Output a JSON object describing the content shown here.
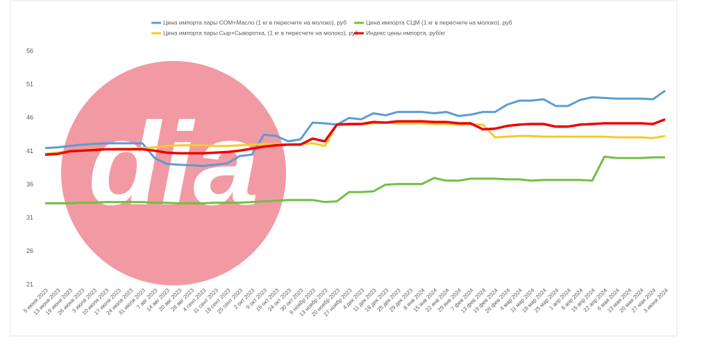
{
  "chart_data": {
    "type": "line",
    "watermark": "dia",
    "categories": [
      "5 июня 2023",
      "13 июня 2023",
      "19 июня 2023",
      "26 июня 2023",
      "3 июля 2023",
      "10 июля 2023",
      "17 июля 2023",
      "24 июля 2023",
      "31 июля 2023",
      "7 авг 2023",
      "14 авг 2023",
      "20 авг 2023",
      "28 авг 2023",
      "4 сент 2023",
      "11 сент 2023",
      "18 сент 2023",
      "25 сент 2023",
      "2 окт 2023",
      "9 окт 2023",
      "16 окт 2023",
      "24 окт 2023",
      "30 окт 2023",
      "6 ноябр 2023",
      "13 ноябр 2023",
      "20 ноябр 2023",
      "27 ноябр 2023",
      "4 дек 2023",
      "11 дек 2023",
      "18 дек 2023",
      "25 дек 2023",
      "29 дек 2023",
      "8 янв 2024",
      "15 янв 2024",
      "22 янв 2024",
      "29 янв 2024",
      "7 фев 2024",
      "13 фев 2024",
      "19 фев 2024",
      "26 фев 2024",
      "4 мар 2024",
      "11 мар 2024",
      "18 мар 2024",
      "25 мар 2024",
      "1 апр 2024",
      "8 апр 2024",
      "15 апр 2024",
      "22 апр 2024",
      "6 мая 2024",
      "13 мая 2024",
      "20 мая 2024",
      "27 мая 2024",
      "3 июня 2024"
    ],
    "series": [
      {
        "name": "Цена импорта пары СОМ+Масло (1 кг в пересчете на молоко), руб",
        "color": "#5b9bd5",
        "values": [
          41.5,
          41.6,
          41.8,
          42,
          42.1,
          42.2,
          42.2,
          42.2,
          42.2,
          40,
          39.1,
          39,
          38.9,
          38.8,
          39,
          39.2,
          40.3,
          40.5,
          43.5,
          43.3,
          42.5,
          42.8,
          45.3,
          45.2,
          45,
          46,
          45.8,
          46.7,
          46.4,
          46.9,
          46.9,
          46.9,
          46.7,
          46.9,
          46.3,
          46.5,
          46.9,
          46.9,
          48,
          48.6,
          48.6,
          48.8,
          47.8,
          47.8,
          48.7,
          49.1,
          49,
          48.9,
          48.9,
          48.9,
          48.8,
          50.1
        ]
      },
      {
        "name": "Цена импорта СЦМ (1 кг в пересчете на молоко), руб",
        "color": "#70c040",
        "values": [
          33.2,
          33.2,
          33.2,
          33.3,
          33.3,
          33.4,
          33.4,
          33.4,
          33.4,
          33.3,
          33.3,
          33.2,
          33.2,
          33.2,
          33.3,
          33.3,
          33.3,
          33.4,
          33.5,
          33.6,
          33.7,
          33.7,
          33.7,
          33.4,
          33.5,
          34.9,
          34.9,
          35,
          36,
          36.1,
          36.1,
          36.1,
          37,
          36.6,
          36.6,
          36.9,
          36.9,
          36.9,
          36.8,
          36.8,
          36.6,
          36.7,
          36.7,
          36.7,
          36.7,
          36.6,
          40.2,
          40,
          40,
          40,
          40.1,
          40.1
        ]
      },
      {
        "name": "Цена импорта пары Сыр+Сыворотка, (1 кг в пересчете на молоко), руб",
        "color": "#f5c92a",
        "values": [
          40.6,
          40.8,
          41,
          41.2,
          41.3,
          41.3,
          41.4,
          41.4,
          41.5,
          41.6,
          41.8,
          41.9,
          41.9,
          41.9,
          41.8,
          41.8,
          41.9,
          42,
          42.1,
          42.1,
          42,
          42.1,
          42.2,
          41.8,
          45,
          45,
          45.1,
          45.2,
          45.3,
          45.2,
          45.2,
          45.2,
          45.1,
          45.1,
          45,
          45,
          45,
          43.1,
          43.2,
          43.3,
          43.3,
          43.2,
          43.2,
          43.2,
          43.2,
          43.2,
          43.2,
          43.1,
          43.1,
          43.1,
          43,
          43.3
        ]
      },
      {
        "name": "Индекс цены импорта, руб/кг",
        "color": "#ee0000",
        "values": [
          40.5,
          40.6,
          41,
          41.1,
          41.2,
          41.3,
          41.3,
          41.3,
          41.3,
          41.1,
          40.8,
          40.7,
          40.7,
          40.7,
          40.8,
          40.9,
          41.1,
          41.4,
          41.7,
          41.9,
          42,
          42,
          42.9,
          42.5,
          45,
          45.1,
          45.1,
          45.4,
          45.3,
          45.5,
          45.5,
          45.5,
          45.4,
          45.4,
          45.2,
          45.2,
          44.3,
          44.4,
          44.8,
          45,
          45.1,
          45.1,
          44.7,
          44.7,
          45,
          45.1,
          45.2,
          45.2,
          45.2,
          45.2,
          45.1,
          45.8
        ]
      }
    ],
    "ylim": [
      21,
      56
    ],
    "yticks": [
      21,
      26,
      31,
      36,
      41,
      46,
      51,
      56
    ],
    "grid": false
  }
}
